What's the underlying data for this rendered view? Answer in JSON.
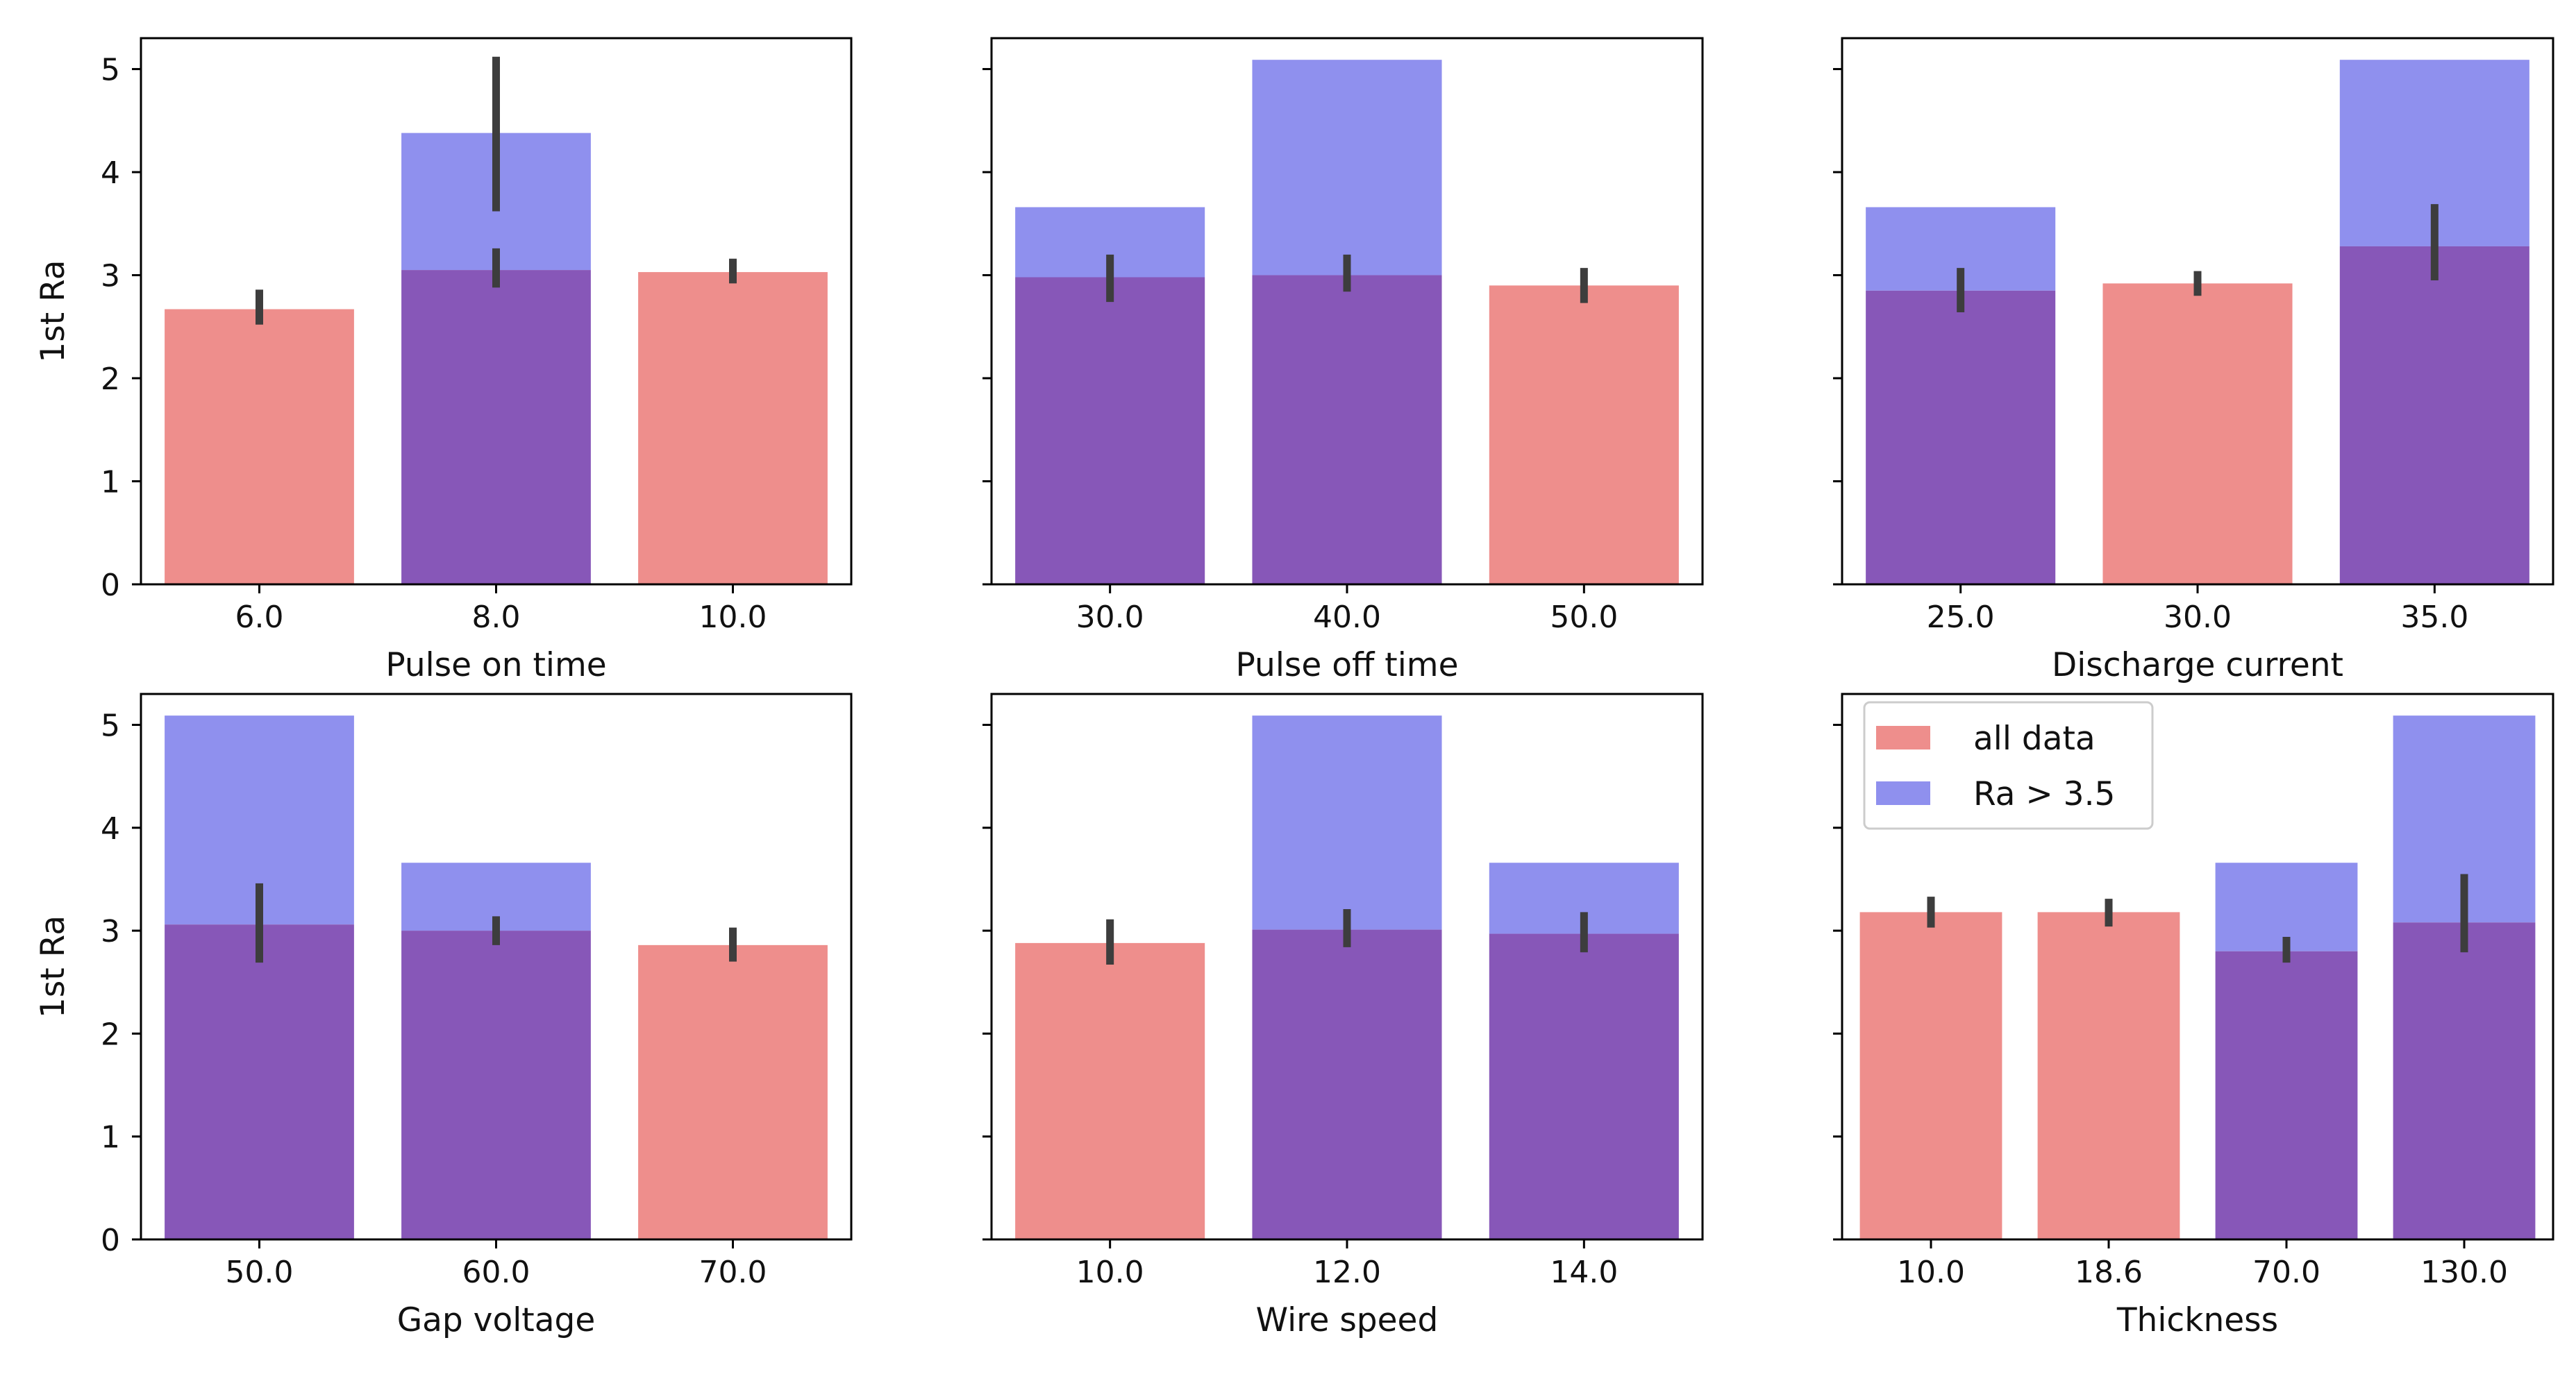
{
  "legend": {
    "entries": [
      {
        "label": "all data",
        "color": "#ee8e8c"
      },
      {
        "label": "Ra > 3.5",
        "color": "#8f90ee"
      }
    ],
    "location": "upper-left of bottom-right panel"
  },
  "colors": {
    "all_data": "#ee8e8c",
    "subset": "#8f90ee",
    "overlap": "#8757b8",
    "error_bar": "#3d3d3d"
  },
  "chart_data": [
    {
      "type": "bar",
      "xlabel": "Pulse on time",
      "ylabel": "1st Ra",
      "ylim": [
        0,
        5.3
      ],
      "yticks": [
        "0",
        "1",
        "2",
        "3",
        "4",
        "5"
      ],
      "categories": [
        "6.0",
        "8.0",
        "10.0"
      ],
      "series": [
        {
          "name": "all data",
          "values": [
            2.67,
            3.05,
            3.03
          ],
          "err_low": [
            2.52,
            2.88,
            2.92
          ],
          "err_high": [
            2.86,
            3.26,
            3.16
          ]
        },
        {
          "name": "Ra > 3.5",
          "values": [
            null,
            4.38,
            null
          ],
          "err_low": [
            null,
            3.62,
            null
          ],
          "err_high": [
            null,
            5.12,
            null
          ]
        }
      ]
    },
    {
      "type": "bar",
      "xlabel": "Pulse off time",
      "ylabel": "",
      "ylim": [
        0,
        5.3
      ],
      "yticks": [
        "",
        "",
        "",
        "",
        "",
        ""
      ],
      "categories": [
        "30.0",
        "40.0",
        "50.0"
      ],
      "series": [
        {
          "name": "all data",
          "values": [
            2.98,
            3.0,
            2.9
          ],
          "err_low": [
            2.74,
            2.84,
            2.73
          ],
          "err_high": [
            3.2,
            3.2,
            3.07
          ]
        },
        {
          "name": "Ra > 3.5",
          "values": [
            3.66,
            5.09,
            null
          ],
          "err_low": [
            null,
            null,
            null
          ],
          "err_high": [
            null,
            null,
            null
          ]
        }
      ]
    },
    {
      "type": "bar",
      "xlabel": "Discharge current",
      "ylabel": "",
      "ylim": [
        0,
        5.3
      ],
      "yticks": [
        "",
        "",
        "",
        "",
        "",
        ""
      ],
      "categories": [
        "25.0",
        "30.0",
        "35.0"
      ],
      "series": [
        {
          "name": "all data",
          "values": [
            2.85,
            2.92,
            3.28
          ],
          "err_low": [
            2.64,
            2.8,
            2.95
          ],
          "err_high": [
            3.07,
            3.04,
            3.69
          ]
        },
        {
          "name": "Ra > 3.5",
          "values": [
            3.66,
            null,
            5.09
          ],
          "err_low": [
            null,
            null,
            null
          ],
          "err_high": [
            null,
            null,
            null
          ]
        }
      ]
    },
    {
      "type": "bar",
      "xlabel": "Gap voltage",
      "ylabel": "1st Ra",
      "ylim": [
        0,
        5.3
      ],
      "yticks": [
        "0",
        "1",
        "2",
        "3",
        "4",
        "5"
      ],
      "categories": [
        "50.0",
        "60.0",
        "70.0"
      ],
      "series": [
        {
          "name": "all data",
          "values": [
            3.06,
            3.0,
            2.86
          ],
          "err_low": [
            2.69,
            2.86,
            2.7
          ],
          "err_high": [
            3.46,
            3.14,
            3.03
          ]
        },
        {
          "name": "Ra > 3.5",
          "values": [
            5.09,
            3.66,
            null
          ],
          "err_low": [
            null,
            null,
            null
          ],
          "err_high": [
            null,
            null,
            null
          ]
        }
      ]
    },
    {
      "type": "bar",
      "xlabel": "Wire speed",
      "ylabel": "",
      "ylim": [
        0,
        5.3
      ],
      "yticks": [
        "",
        "",
        "",
        "",
        "",
        ""
      ],
      "categories": [
        "10.0",
        "12.0",
        "14.0"
      ],
      "series": [
        {
          "name": "all data",
          "values": [
            2.88,
            3.01,
            2.97
          ],
          "err_low": [
            2.67,
            2.84,
            2.79
          ],
          "err_high": [
            3.11,
            3.21,
            3.18
          ]
        },
        {
          "name": "Ra > 3.5",
          "values": [
            null,
            5.09,
            3.66
          ],
          "err_low": [
            null,
            null,
            null
          ],
          "err_high": [
            null,
            null,
            null
          ]
        }
      ]
    },
    {
      "type": "bar",
      "xlabel": "Thickness",
      "ylabel": "",
      "ylim": [
        0,
        5.3
      ],
      "yticks": [
        "",
        "",
        "",
        "",
        "",
        ""
      ],
      "categories": [
        "10.0",
        "18.6",
        "70.0",
        "130.0"
      ],
      "series": [
        {
          "name": "all data",
          "values": [
            3.18,
            3.18,
            2.8,
            3.08
          ],
          "err_low": [
            3.03,
            3.04,
            2.69,
            2.79
          ],
          "err_high": [
            3.33,
            3.31,
            2.94,
            3.55
          ]
        },
        {
          "name": "Ra > 3.5",
          "values": [
            null,
            null,
            3.66,
            5.09
          ],
          "err_low": [
            null,
            null,
            null,
            null
          ],
          "err_high": [
            null,
            null,
            null,
            null
          ]
        }
      ]
    }
  ]
}
